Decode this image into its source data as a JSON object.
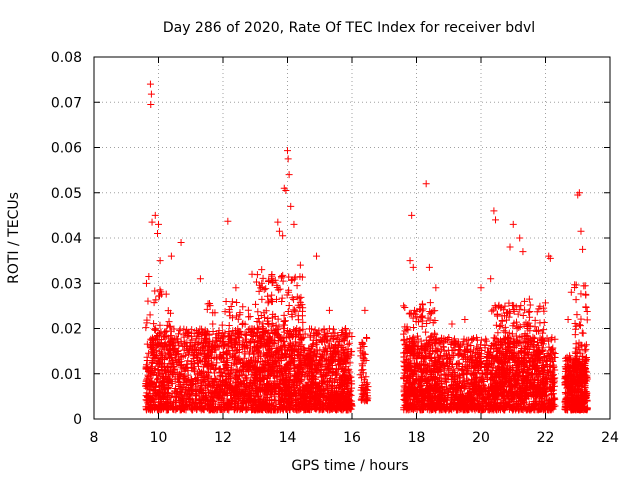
{
  "chart_data": {
    "type": "scatter",
    "title": "Day 286 of 2020, Rate Of TEC Index for receiver bdvl",
    "xlabel": "GPS time / hours",
    "ylabel": "ROTI / TECUs",
    "xlim": [
      8,
      24
    ],
    "ylim": [
      0,
      0.08
    ],
    "x_ticks": [
      "8",
      "10",
      "12",
      "14",
      "16",
      "18",
      "20",
      "22",
      "24"
    ],
    "y_ticks": [
      "0",
      "0.01",
      "0.02",
      "0.03",
      "0.04",
      "0.05",
      "0.06",
      "0.07",
      "0.08"
    ],
    "grid": true,
    "legend": "none",
    "marker": "plus",
    "color": "#ff0000",
    "series": [
      {
        "x": [
          9.75,
          9.78,
          9.76,
          9.8,
          9.7,
          9.9,
          10.0,
          9.97,
          10.05,
          10.4,
          10.7,
          11.3,
          12.15,
          12.4,
          12.9,
          13.2,
          13.5,
          13.7,
          13.75,
          13.85,
          13.9,
          13.95,
          14.0,
          14.02,
          14.05,
          14.1,
          14.2,
          14.4,
          14.9,
          15.3,
          15.8,
          16.4,
          16.45,
          17.6,
          17.8,
          17.85,
          17.9,
          18.3,
          18.4,
          18.6,
          19.1,
          19.5,
          20.0,
          20.3,
          20.4,
          20.45,
          20.9,
          21.0,
          21.2,
          21.3,
          21.35,
          21.5,
          22.1,
          22.15,
          22.7,
          22.8,
          23.0,
          23.05,
          23.1,
          23.15
        ],
        "y": [
          0.074,
          0.0718,
          0.0695,
          0.0435,
          0.0315,
          0.045,
          0.043,
          0.041,
          0.035,
          0.036,
          0.039,
          0.031,
          0.0437,
          0.029,
          0.032,
          0.033,
          0.031,
          0.0435,
          0.0415,
          0.0405,
          0.051,
          0.0505,
          0.0593,
          0.0575,
          0.054,
          0.047,
          0.043,
          0.034,
          0.036,
          0.024,
          0.02,
          0.024,
          0.018,
          0.025,
          0.035,
          0.045,
          0.0335,
          0.052,
          0.0335,
          0.029,
          0.021,
          0.022,
          0.029,
          0.031,
          0.046,
          0.044,
          0.038,
          0.043,
          0.04,
          0.037,
          0.026,
          0.0265,
          0.036,
          0.0355,
          0.022,
          0.028,
          0.0495,
          0.05,
          0.0415,
          0.0375
        ]
      }
    ],
    "bands": [
      {
        "x0": 9.6,
        "x1": 16.0,
        "ymin": 0.002,
        "ymax": 0.02,
        "n": 2400
      },
      {
        "x0": 9.6,
        "x1": 10.4,
        "ymin": 0.005,
        "ymax": 0.03,
        "n": 70
      },
      {
        "x0": 11.5,
        "x1": 13.0,
        "ymin": 0.005,
        "ymax": 0.026,
        "n": 160
      },
      {
        "x0": 13.0,
        "x1": 14.5,
        "ymin": 0.006,
        "ymax": 0.032,
        "n": 320
      },
      {
        "x0": 14.5,
        "x1": 16.0,
        "ymin": 0.003,
        "ymax": 0.014,
        "n": 180
      },
      {
        "x0": 16.25,
        "x1": 16.5,
        "ymin": 0.004,
        "ymax": 0.018,
        "n": 60
      },
      {
        "x0": 17.6,
        "x1": 22.3,
        "ymin": 0.002,
        "ymax": 0.018,
        "n": 1900
      },
      {
        "x0": 17.6,
        "x1": 18.6,
        "ymin": 0.005,
        "ymax": 0.026,
        "n": 170
      },
      {
        "x0": 20.3,
        "x1": 22.0,
        "ymin": 0.005,
        "ymax": 0.026,
        "n": 320
      },
      {
        "x0": 22.6,
        "x1": 23.3,
        "ymin": 0.002,
        "ymax": 0.014,
        "n": 450
      },
      {
        "x0": 22.9,
        "x1": 23.3,
        "ymin": 0.008,
        "ymax": 0.03,
        "n": 70
      }
    ]
  }
}
